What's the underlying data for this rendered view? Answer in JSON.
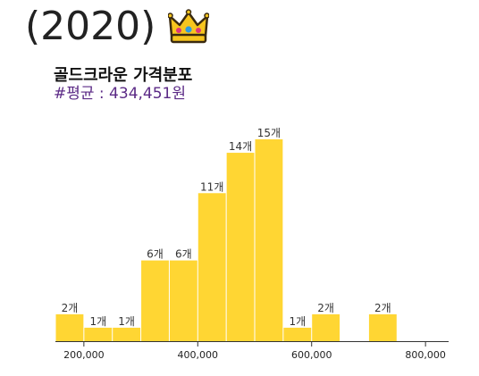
{
  "header": {
    "year": "(2020)",
    "icon": "crown-icon"
  },
  "chart_data": {
    "type": "bar",
    "title": "골드크라운 가격분포",
    "subtitle": "#평균 : 434,451원",
    "bar_color": "#ffd633",
    "subtitle_color": "#5b2a86",
    "bin_width": 50000,
    "bins": [
      {
        "start": 150000,
        "count": 2,
        "label": "2개"
      },
      {
        "start": 200000,
        "count": 1,
        "label": "1개"
      },
      {
        "start": 250000,
        "count": 1,
        "label": "1개"
      },
      {
        "start": 300000,
        "count": 6,
        "label": "6개"
      },
      {
        "start": 350000,
        "count": 6,
        "label": "6개"
      },
      {
        "start": 400000,
        "count": 11,
        "label": "11개"
      },
      {
        "start": 450000,
        "count": 14,
        "label": "14개"
      },
      {
        "start": 500000,
        "count": 15,
        "label": "15개"
      },
      {
        "start": 550000,
        "count": 1,
        "label": "1개"
      },
      {
        "start": 600000,
        "count": 2,
        "label": "2개"
      },
      {
        "start": 700000,
        "count": 2,
        "label": "2개"
      }
    ],
    "xlim": [
      150000,
      850000
    ],
    "ylim": [
      0,
      15
    ],
    "x_ticks": [
      {
        "value": 200000,
        "label": "200,000"
      },
      {
        "value": 400000,
        "label": "400,000"
      },
      {
        "value": 600000,
        "label": "600,000"
      },
      {
        "value": 800000,
        "label": "800,000"
      }
    ]
  }
}
